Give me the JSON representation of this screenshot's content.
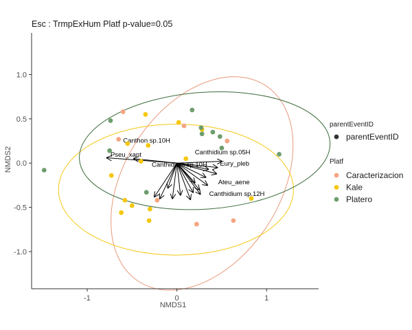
{
  "chart_data": {
    "type": "scatter",
    "title": "Esc : TrmpExHum Platf  p-value=0.05",
    "xlabel": "NMDS1",
    "ylabel": "NMDS2",
    "xlim": [
      -1.62,
      1.58
    ],
    "ylim": [
      -1.42,
      1.47
    ],
    "x_ticks": [
      -1,
      0,
      1
    ],
    "x_tick_labels": [
      "-1",
      "0",
      "1"
    ],
    "y_ticks": [
      1.0,
      0.5,
      0.0,
      -0.5,
      -1.0
    ],
    "y_tick_labels": [
      "1.0",
      "0.5",
      "0.0",
      "-0.5",
      "-1.0"
    ],
    "grid": false,
    "legend_position": "right",
    "legends": [
      {
        "title": "parentEventID",
        "entries": [
          {
            "label": "parentEventID",
            "color": "#333333"
          }
        ]
      },
      {
        "title": "Platf",
        "entries": [
          {
            "label": "Caracterizacion",
            "color": "#F4A582"
          },
          {
            "label": "Kale",
            "color": "#F5C710"
          },
          {
            "label": "Platero",
            "color": "#6E9E6E"
          }
        ]
      }
    ],
    "series": [
      {
        "name": "Caracterizacion",
        "color": "#F4A582",
        "points": [
          [
            -0.6,
            0.58
          ],
          [
            -0.65,
            0.27
          ],
          [
            0.08,
            0.42
          ],
          [
            0.56,
            0.25
          ],
          [
            0.22,
            -0.69
          ],
          [
            0.63,
            -0.65
          ],
          [
            -0.22,
            -0.42
          ]
        ]
      },
      {
        "name": "Kale",
        "color": "#F5C710",
        "points": [
          [
            -0.35,
            0.55
          ],
          [
            0.02,
            0.46
          ],
          [
            -0.55,
            0.22
          ],
          [
            -0.32,
            0.2
          ],
          [
            0.28,
            0.38
          ],
          [
            -0.4,
            0.02
          ],
          [
            -0.73,
            -0.14
          ],
          [
            0.1,
            0.05
          ],
          [
            -0.58,
            -0.42
          ],
          [
            -0.5,
            -0.48
          ],
          [
            -0.3,
            -0.52
          ],
          [
            -0.62,
            -0.56
          ],
          [
            -0.31,
            -0.65
          ],
          [
            0.83,
            -0.4
          ]
        ]
      },
      {
        "name": "Platero",
        "color": "#6E9E6E",
        "points": [
          [
            -0.74,
            0.48
          ],
          [
            0.17,
            0.6
          ],
          [
            0.27,
            0.4
          ],
          [
            0.4,
            0.35
          ],
          [
            0.48,
            0.3
          ],
          [
            0.5,
            0.17
          ],
          [
            0.28,
            0.33
          ],
          [
            1.14,
            0.1
          ],
          [
            -0.75,
            0.14
          ],
          [
            -1.48,
            -0.08
          ],
          [
            -0.34,
            -0.33
          ]
        ]
      }
    ],
    "ellipses": [
      {
        "series": "Caracterizacion",
        "color": "#E8997A",
        "center": [
          0.28,
          -0.23
        ],
        "rx": 1.3,
        "ry": 0.88,
        "rotation_deg": 57
      },
      {
        "series": "Kale",
        "color": "#F5C710",
        "center": [
          -0.01,
          -0.3
        ],
        "rx": 1.31,
        "ry": 0.74,
        "rotation_deg": 0
      },
      {
        "series": "Platero",
        "color": "#3B6B3B",
        "center": [
          0.31,
          0.14
        ],
        "rx": 1.4,
        "ry": 0.66,
        "rotation_deg": 4
      }
    ],
    "vectors": [
      {
        "label": "Canthon sp.10H",
        "end": [
          -0.48,
          0.05
        ]
      },
      {
        "label": "Pseu_xant",
        "end": [
          -0.78,
          0.06
        ]
      },
      {
        "label": "Canthidium sp.05H",
        "end": [
          0.5,
          0.02
        ]
      },
      {
        "label": "Eury_pleb",
        "end": [
          0.45,
          -0.05
        ]
      },
      {
        "label": "Canthidium sp.10H",
        "end": [
          0.35,
          -0.07
        ]
      },
      {
        "label": "Ateu_aene",
        "end": [
          0.34,
          -0.25
        ]
      },
      {
        "label": "Canthidium sp.12H",
        "end": [
          0.26,
          -0.35
        ]
      },
      {
        "label": "",
        "end": [
          -0.25,
          -0.38
        ]
      },
      {
        "label": "",
        "end": [
          -0.19,
          -0.4
        ]
      },
      {
        "label": "",
        "end": [
          -0.05,
          -0.4
        ]
      },
      {
        "label": "",
        "end": [
          0.04,
          -0.36
        ]
      },
      {
        "label": "",
        "end": [
          0.15,
          -0.41
        ]
      },
      {
        "label": "",
        "end": [
          0.18,
          -0.33
        ]
      },
      {
        "label": "",
        "end": [
          0.32,
          -0.16
        ]
      },
      {
        "label": "",
        "end": [
          0.25,
          -0.3
        ]
      },
      {
        "label": "",
        "end": [
          0.2,
          -0.22
        ]
      },
      {
        "label": "",
        "end": [
          -0.1,
          -0.28
        ]
      },
      {
        "label": "",
        "end": [
          0.44,
          -0.12
        ]
      }
    ]
  }
}
